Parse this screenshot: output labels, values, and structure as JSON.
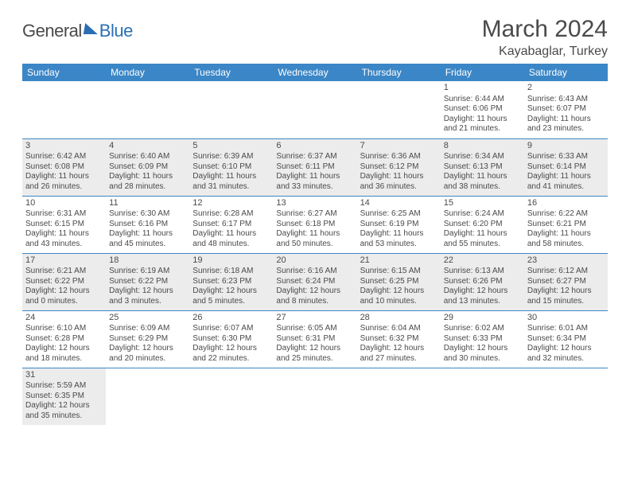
{
  "logo": {
    "part1": "General",
    "part2": "Blue"
  },
  "title": "March 2024",
  "location": "Kayabaglar, Turkey",
  "colors": {
    "header_bg": "#3b86c6",
    "header_text": "#ffffff",
    "accent": "#2a6fb5",
    "shade_bg": "#ececec",
    "text": "#4a4a4a",
    "border": "#3b86c6"
  },
  "weekdays": [
    "Sunday",
    "Monday",
    "Tuesday",
    "Wednesday",
    "Thursday",
    "Friday",
    "Saturday"
  ],
  "weeks": [
    {
      "shade": false,
      "days": [
        null,
        null,
        null,
        null,
        null,
        {
          "n": "1",
          "sr": "Sunrise: 6:44 AM",
          "ss": "Sunset: 6:06 PM",
          "d1": "Daylight: 11 hours",
          "d2": "and 21 minutes."
        },
        {
          "n": "2",
          "sr": "Sunrise: 6:43 AM",
          "ss": "Sunset: 6:07 PM",
          "d1": "Daylight: 11 hours",
          "d2": "and 23 minutes."
        }
      ]
    },
    {
      "shade": true,
      "days": [
        {
          "n": "3",
          "sr": "Sunrise: 6:42 AM",
          "ss": "Sunset: 6:08 PM",
          "d1": "Daylight: 11 hours",
          "d2": "and 26 minutes."
        },
        {
          "n": "4",
          "sr": "Sunrise: 6:40 AM",
          "ss": "Sunset: 6:09 PM",
          "d1": "Daylight: 11 hours",
          "d2": "and 28 minutes."
        },
        {
          "n": "5",
          "sr": "Sunrise: 6:39 AM",
          "ss": "Sunset: 6:10 PM",
          "d1": "Daylight: 11 hours",
          "d2": "and 31 minutes."
        },
        {
          "n": "6",
          "sr": "Sunrise: 6:37 AM",
          "ss": "Sunset: 6:11 PM",
          "d1": "Daylight: 11 hours",
          "d2": "and 33 minutes."
        },
        {
          "n": "7",
          "sr": "Sunrise: 6:36 AM",
          "ss": "Sunset: 6:12 PM",
          "d1": "Daylight: 11 hours",
          "d2": "and 36 minutes."
        },
        {
          "n": "8",
          "sr": "Sunrise: 6:34 AM",
          "ss": "Sunset: 6:13 PM",
          "d1": "Daylight: 11 hours",
          "d2": "and 38 minutes."
        },
        {
          "n": "9",
          "sr": "Sunrise: 6:33 AM",
          "ss": "Sunset: 6:14 PM",
          "d1": "Daylight: 11 hours",
          "d2": "and 41 minutes."
        }
      ]
    },
    {
      "shade": false,
      "days": [
        {
          "n": "10",
          "sr": "Sunrise: 6:31 AM",
          "ss": "Sunset: 6:15 PM",
          "d1": "Daylight: 11 hours",
          "d2": "and 43 minutes."
        },
        {
          "n": "11",
          "sr": "Sunrise: 6:30 AM",
          "ss": "Sunset: 6:16 PM",
          "d1": "Daylight: 11 hours",
          "d2": "and 45 minutes."
        },
        {
          "n": "12",
          "sr": "Sunrise: 6:28 AM",
          "ss": "Sunset: 6:17 PM",
          "d1": "Daylight: 11 hours",
          "d2": "and 48 minutes."
        },
        {
          "n": "13",
          "sr": "Sunrise: 6:27 AM",
          "ss": "Sunset: 6:18 PM",
          "d1": "Daylight: 11 hours",
          "d2": "and 50 minutes."
        },
        {
          "n": "14",
          "sr": "Sunrise: 6:25 AM",
          "ss": "Sunset: 6:19 PM",
          "d1": "Daylight: 11 hours",
          "d2": "and 53 minutes."
        },
        {
          "n": "15",
          "sr": "Sunrise: 6:24 AM",
          "ss": "Sunset: 6:20 PM",
          "d1": "Daylight: 11 hours",
          "d2": "and 55 minutes."
        },
        {
          "n": "16",
          "sr": "Sunrise: 6:22 AM",
          "ss": "Sunset: 6:21 PM",
          "d1": "Daylight: 11 hours",
          "d2": "and 58 minutes."
        }
      ]
    },
    {
      "shade": true,
      "days": [
        {
          "n": "17",
          "sr": "Sunrise: 6:21 AM",
          "ss": "Sunset: 6:22 PM",
          "d1": "Daylight: 12 hours",
          "d2": "and 0 minutes."
        },
        {
          "n": "18",
          "sr": "Sunrise: 6:19 AM",
          "ss": "Sunset: 6:22 PM",
          "d1": "Daylight: 12 hours",
          "d2": "and 3 minutes."
        },
        {
          "n": "19",
          "sr": "Sunrise: 6:18 AM",
          "ss": "Sunset: 6:23 PM",
          "d1": "Daylight: 12 hours",
          "d2": "and 5 minutes."
        },
        {
          "n": "20",
          "sr": "Sunrise: 6:16 AM",
          "ss": "Sunset: 6:24 PM",
          "d1": "Daylight: 12 hours",
          "d2": "and 8 minutes."
        },
        {
          "n": "21",
          "sr": "Sunrise: 6:15 AM",
          "ss": "Sunset: 6:25 PM",
          "d1": "Daylight: 12 hours",
          "d2": "and 10 minutes."
        },
        {
          "n": "22",
          "sr": "Sunrise: 6:13 AM",
          "ss": "Sunset: 6:26 PM",
          "d1": "Daylight: 12 hours",
          "d2": "and 13 minutes."
        },
        {
          "n": "23",
          "sr": "Sunrise: 6:12 AM",
          "ss": "Sunset: 6:27 PM",
          "d1": "Daylight: 12 hours",
          "d2": "and 15 minutes."
        }
      ]
    },
    {
      "shade": false,
      "days": [
        {
          "n": "24",
          "sr": "Sunrise: 6:10 AM",
          "ss": "Sunset: 6:28 PM",
          "d1": "Daylight: 12 hours",
          "d2": "and 18 minutes."
        },
        {
          "n": "25",
          "sr": "Sunrise: 6:09 AM",
          "ss": "Sunset: 6:29 PM",
          "d1": "Daylight: 12 hours",
          "d2": "and 20 minutes."
        },
        {
          "n": "26",
          "sr": "Sunrise: 6:07 AM",
          "ss": "Sunset: 6:30 PM",
          "d1": "Daylight: 12 hours",
          "d2": "and 22 minutes."
        },
        {
          "n": "27",
          "sr": "Sunrise: 6:05 AM",
          "ss": "Sunset: 6:31 PM",
          "d1": "Daylight: 12 hours",
          "d2": "and 25 minutes."
        },
        {
          "n": "28",
          "sr": "Sunrise: 6:04 AM",
          "ss": "Sunset: 6:32 PM",
          "d1": "Daylight: 12 hours",
          "d2": "and 27 minutes."
        },
        {
          "n": "29",
          "sr": "Sunrise: 6:02 AM",
          "ss": "Sunset: 6:33 PM",
          "d1": "Daylight: 12 hours",
          "d2": "and 30 minutes."
        },
        {
          "n": "30",
          "sr": "Sunrise: 6:01 AM",
          "ss": "Sunset: 6:34 PM",
          "d1": "Daylight: 12 hours",
          "d2": "and 32 minutes."
        }
      ]
    },
    {
      "shade": true,
      "days": [
        {
          "n": "31",
          "sr": "Sunrise: 5:59 AM",
          "ss": "Sunset: 6:35 PM",
          "d1": "Daylight: 12 hours",
          "d2": "and 35 minutes."
        },
        null,
        null,
        null,
        null,
        null,
        null
      ]
    }
  ]
}
